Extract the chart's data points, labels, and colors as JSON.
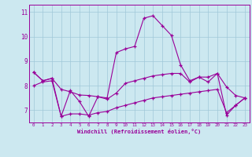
{
  "xlabel": "Windchill (Refroidissement éolien,°C)",
  "xlim": [
    -0.5,
    23.5
  ],
  "ylim": [
    6.5,
    11.3
  ],
  "yticks": [
    7,
    8,
    9,
    10,
    11
  ],
  "xticks": [
    0,
    1,
    2,
    3,
    4,
    5,
    6,
    7,
    8,
    9,
    10,
    11,
    12,
    13,
    14,
    15,
    16,
    17,
    18,
    19,
    20,
    21,
    22,
    23
  ],
  "bg_color": "#cce8f0",
  "grid_color": "#a0c8d8",
  "line_color": "#990099",
  "line1_x": [
    0,
    1,
    2,
    3,
    4,
    5,
    6,
    7,
    8,
    9,
    10,
    11,
    12,
    13,
    14,
    15,
    16,
    17,
    18,
    19,
    20,
    21,
    22,
    23
  ],
  "line1_y": [
    8.55,
    8.2,
    8.3,
    7.85,
    7.75,
    7.62,
    7.6,
    7.55,
    7.5,
    9.35,
    9.5,
    9.6,
    10.75,
    10.85,
    10.45,
    10.05,
    8.85,
    8.2,
    8.35,
    8.15,
    8.5,
    7.95,
    7.6,
    7.5
  ],
  "line2_x": [
    0,
    1,
    2,
    3,
    4,
    5,
    6,
    7,
    8,
    9,
    10,
    11,
    12,
    13,
    14,
    15,
    16,
    17,
    18,
    19,
    20,
    21,
    22,
    23
  ],
  "line2_y": [
    8.55,
    8.2,
    8.3,
    6.75,
    7.8,
    7.35,
    6.75,
    7.55,
    7.45,
    7.7,
    8.1,
    8.2,
    8.3,
    8.4,
    8.45,
    8.5,
    8.5,
    8.15,
    8.35,
    8.35,
    8.5,
    6.8,
    7.2,
    7.5
  ],
  "line3_x": [
    0,
    1,
    2,
    3,
    4,
    5,
    6,
    7,
    8,
    9,
    10,
    11,
    12,
    13,
    14,
    15,
    16,
    17,
    18,
    19,
    20,
    21,
    22,
    23
  ],
  "line3_y": [
    8.0,
    8.15,
    8.2,
    6.75,
    6.85,
    6.85,
    6.8,
    6.9,
    6.95,
    7.1,
    7.2,
    7.3,
    7.4,
    7.5,
    7.55,
    7.6,
    7.65,
    7.7,
    7.75,
    7.8,
    7.85,
    6.9,
    7.2,
    7.5
  ]
}
